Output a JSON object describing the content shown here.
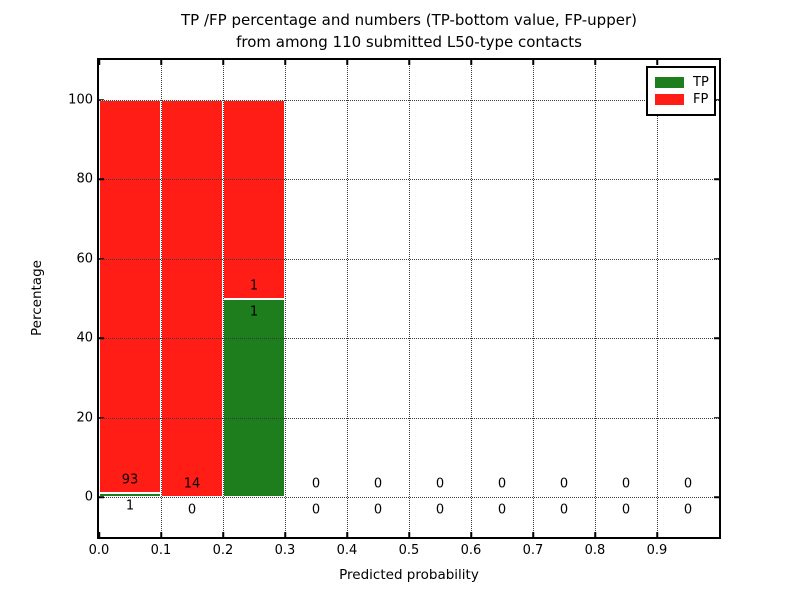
{
  "chart_data": {
    "type": "bar",
    "stacked": true,
    "title_line1": "TP /FP percentage and numbers (TP-bottom value, FP-upper)",
    "title_line2": "from among 110 submitted L50-type contacts",
    "xlabel": "Predicted probability",
    "ylabel": "Percentage",
    "xlim": [
      0.0,
      1.0
    ],
    "ylim": [
      -10,
      110
    ],
    "x_tick_labels": [
      "0.0",
      "0.1",
      "0.2",
      "0.3",
      "0.4",
      "0.5",
      "0.6",
      "0.7",
      "0.8",
      "0.9"
    ],
    "x_tick_values": [
      0.0,
      0.1,
      0.2,
      0.3,
      0.4,
      0.5,
      0.6,
      0.7,
      0.8,
      0.9
    ],
    "y_tick_labels": [
      "0",
      "20",
      "40",
      "60",
      "80",
      "100"
    ],
    "y_tick_values": [
      0,
      20,
      40,
      60,
      80,
      100
    ],
    "grid": "dotted",
    "legend": [
      {
        "label": "TP",
        "color": "#1e7e1e"
      },
      {
        "label": "FP",
        "color": "#ff1d16"
      }
    ],
    "colors": {
      "tp": "#1e7e1e",
      "fp": "#ff1d16"
    },
    "bins": [
      {
        "range": [
          0.0,
          0.1
        ],
        "tp": 1,
        "fp": 93,
        "tp_pct": 1.06,
        "fp_pct": 98.94
      },
      {
        "range": [
          0.1,
          0.2
        ],
        "tp": 0,
        "fp": 14,
        "tp_pct": 0,
        "fp_pct": 100
      },
      {
        "range": [
          0.2,
          0.3
        ],
        "tp": 1,
        "fp": 1,
        "tp_pct": 50,
        "fp_pct": 50
      },
      {
        "range": [
          0.3,
          0.4
        ],
        "tp": 0,
        "fp": 0,
        "tp_pct": 0,
        "fp_pct": 0
      },
      {
        "range": [
          0.4,
          0.5
        ],
        "tp": 0,
        "fp": 0,
        "tp_pct": 0,
        "fp_pct": 0
      },
      {
        "range": [
          0.5,
          0.6
        ],
        "tp": 0,
        "fp": 0,
        "tp_pct": 0,
        "fp_pct": 0
      },
      {
        "range": [
          0.6,
          0.7
        ],
        "tp": 0,
        "fp": 0,
        "tp_pct": 0,
        "fp_pct": 0
      },
      {
        "range": [
          0.7,
          0.8
        ],
        "tp": 0,
        "fp": 0,
        "tp_pct": 0,
        "fp_pct": 0
      },
      {
        "range": [
          0.8,
          0.9
        ],
        "tp": 0,
        "fp": 0,
        "tp_pct": 0,
        "fp_pct": 0
      },
      {
        "range": [
          0.9,
          1.0
        ],
        "tp": 0,
        "fp": 0,
        "tp_pct": 0,
        "fp_pct": 0
      }
    ]
  }
}
